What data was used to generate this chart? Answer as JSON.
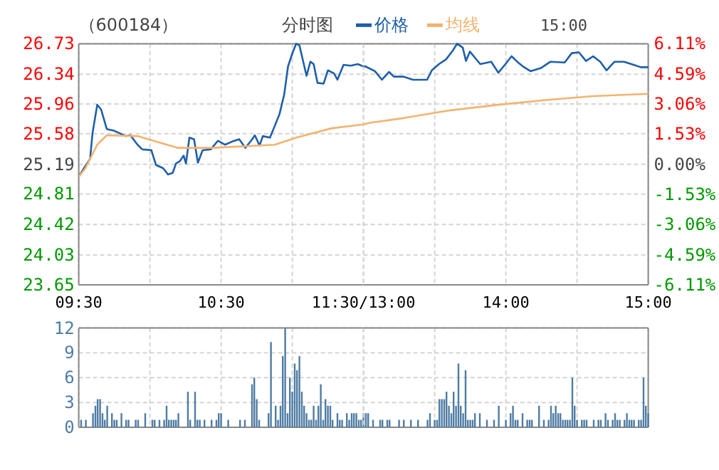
{
  "chart_data": [
    {
      "type": "line",
      "title": "（600184）",
      "subtitle": "分时图",
      "legend": "top",
      "grid": true,
      "xlim": [
        9.5,
        11.5
      ],
      "xticks": [
        {
          "value": 9.5,
          "label": "09:30"
        },
        {
          "value": 10,
          "label": null
        },
        {
          "value": 10.5,
          "label": "10:30"
        },
        {
          "value": 11,
          "label": null
        },
        {
          "value": 11.5,
          "label": "11:30/13:00"
        }
      ],
      "ylim": [
        23.65,
        26.73
      ],
      "yticks": [
        23.65,
        24.03,
        24.42,
        24.81,
        25.19,
        25.58,
        25.96,
        26.34,
        26.73
      ],
      "series": [
        {
          "name": "价格",
          "color": "#1f5fa8",
          "x": [
            9.5,
            9.547,
            9.58,
            9.597,
            9.63,
            9.657,
            9.697,
            9.747,
            9.83,
            9.863,
            9.913,
            9.947,
            10.01,
            10.043,
            10.093,
            10.127,
            10.16,
            10.183,
            10.21,
            10.237,
            10.253,
            10.277,
            10.31,
            10.337,
            10.37,
            10.427,
            10.477,
            10.527,
            10.577,
            10.627,
            10.67,
            10.71,
            10.737,
            10.77,
            10.793,
            10.843,
            10.87,
            10.91,
            10.943,
            10.97,
            11.003,
            11.027,
            11.05,
            11.077,
            11.1,
            11.127,
            11.15,
            11.177,
            11.22,
            11.25,
            11.293,
            11.317,
            11.36,
            11.41,
            11.46,
            11.5
          ],
          "values": [
            25.03,
            25.17,
            25.26,
            25.59,
            25.95,
            25.89,
            25.64,
            25.62,
            25.55,
            25.56,
            25.44,
            25.38,
            25.37,
            25.18,
            25.14,
            25.06,
            25.08,
            25.2,
            25.23,
            25.3,
            25.2,
            25.53,
            25.51,
            25.21,
            25.37,
            25.38,
            25.49,
            25.44,
            25.48,
            25.51,
            25.4,
            25.49,
            25.56,
            25.43,
            25.55,
            25.53,
            25.65,
            25.83,
            26.08,
            26.44,
            26.62,
            26.73,
            26.71,
            26.5,
            26.32,
            26.5,
            26.47,
            26.23,
            26.22,
            26.39,
            26.35,
            26.27,
            26.46,
            26.45,
            26.47,
            26.44
          ]
        },
        {
          "name": "均线",
          "color": "#f3b36f",
          "x": [
            9.5,
            9.547,
            9.63,
            9.697,
            9.913,
            10.043,
            10.193,
            10.443,
            10.877,
            11.027,
            11.277,
            11.5
          ],
          "values": [
            25.03,
            25.14,
            25.44,
            25.56,
            25.55,
            25.48,
            25.4,
            25.4,
            25.44,
            25.53,
            25.65,
            25.7
          ]
        }
      ]
    },
    {
      "type": "line",
      "annotations": [
        "15:00"
      ],
      "grid": true,
      "tick_labels": "x",
      "xlim": [
        13,
        15
      ],
      "xticks": [
        {
          "value": 13,
          "label": null
        },
        {
          "value": 13.5,
          "label": null
        },
        {
          "value": 14,
          "label": "14:00"
        },
        {
          "value": 14.5,
          "label": null
        },
        {
          "value": 15,
          "label": "15:00"
        }
      ],
      "ylim": [
        23.65,
        26.73
      ],
      "yticks": [
        23.65,
        24.03,
        24.42,
        24.81,
        25.19,
        25.58,
        25.96,
        26.34,
        26.73
      ],
      "y2lim": [
        -6.11,
        6.11
      ],
      "y2ticks": [
        {
          "value": -6.11,
          "label": "-6.11%"
        },
        {
          "value": -4.59,
          "label": "-4.59%"
        },
        {
          "value": -3.06,
          "label": "-3.06%"
        },
        {
          "value": -1.53,
          "label": "-1.53%"
        },
        {
          "value": 0,
          "label": "0.00%"
        },
        {
          "value": 1.53,
          "label": "1.53%"
        },
        {
          "value": 3.06,
          "label": "3.06%"
        },
        {
          "value": 4.59,
          "label": "4.59%"
        },
        {
          "value": 6.11,
          "label": "6.11%"
        }
      ],
      "series": [
        {
          "color": "#1f5fa8",
          "x": [
            13,
            13.013,
            13.08,
            13.13,
            13.18,
            13.213,
            13.28,
            13.347,
            13.447,
            13.48,
            13.53,
            13.58,
            13.63,
            13.657,
            13.697,
            13.72,
            13.747,
            13.82,
            13.897,
            13.947,
            13.997,
            14.04,
            14.08,
            14.12,
            14.173,
            14.247,
            14.313,
            14.413,
            14.463,
            14.513,
            14.563,
            14.613,
            14.663,
            14.707,
            14.763,
            14.83,
            14.897,
            14.947,
            15
          ],
          "values": [
            26.44,
            26.44,
            26.38,
            26.27,
            26.37,
            26.31,
            26.31,
            26.27,
            26.27,
            26.39,
            26.47,
            26.53,
            26.65,
            26.73,
            26.68,
            26.51,
            26.63,
            26.47,
            26.5,
            26.36,
            26.47,
            26.57,
            26.5,
            26.44,
            26.38,
            26.42,
            26.5,
            26.49,
            26.61,
            26.62,
            26.51,
            26.57,
            26.5,
            26.39,
            26.5,
            26.5,
            26.46,
            26.43,
            26.43
          ]
        },
        {
          "color": "#f3b36f",
          "x": [
            13,
            13.043,
            13.28,
            13.613,
            13.947,
            14.28,
            14.613,
            15
          ],
          "values": [
            25.7,
            25.72,
            25.78,
            25.88,
            25.95,
            26.01,
            26.06,
            26.09
          ]
        }
      ]
    },
    {
      "type": "bar",
      "color": "#4f7ca3",
      "grid": true,
      "tick_labels": "y",
      "xlim": [
        9.5,
        11.5
      ],
      "xticks": [
        9.5,
        10,
        10.5,
        11,
        11.5
      ],
      "ylim": [
        0,
        12
      ],
      "yticks": [
        0,
        3,
        6,
        9,
        12
      ],
      "x": [
        9.517,
        9.55,
        9.6,
        9.617,
        9.633,
        9.65,
        9.667,
        9.683,
        9.7,
        9.733,
        9.75,
        9.767,
        9.8,
        9.833,
        9.85,
        9.9,
        9.917,
        9.967,
        10.017,
        10.033,
        10.067,
        10.1,
        10.117,
        10.133,
        10.15,
        10.167,
        10.183,
        10.2,
        10.267,
        10.283,
        10.317,
        10.333,
        10.35,
        10.383,
        10.433,
        10.467,
        10.483,
        10.5,
        10.55,
        10.633,
        10.667,
        10.717,
        10.733,
        10.75,
        10.767,
        10.833,
        10.85,
        10.883,
        10.9,
        10.917,
        10.933,
        10.95,
        10.967,
        10.983,
        11,
        11.017,
        11.033,
        11.05,
        11.067,
        11.083,
        11.1,
        11.117,
        11.133,
        11.15,
        11.167,
        11.183,
        11.2,
        11.217,
        11.233,
        11.25,
        11.267,
        11.283,
        11.317,
        11.333,
        11.35,
        11.383,
        11.4,
        11.417,
        11.433,
        11.45,
        11.467,
        11.483,
        11.5
      ],
      "values": [
        0.9,
        0.9,
        1.7,
        2.6,
        3.4,
        3.4,
        1.7,
        0.9,
        2.6,
        1.7,
        0.9,
        0.9,
        1.7,
        0.9,
        0.9,
        0.9,
        0.9,
        1.7,
        0.9,
        0.9,
        0.9,
        0.9,
        2.6,
        0.9,
        0.9,
        0.9,
        0.9,
        1.7,
        4.3,
        0.9,
        4.3,
        0.9,
        0.9,
        0.9,
        0.9,
        0.9,
        1.7,
        1.7,
        0.9,
        0.9,
        0.9,
        5.2,
        6,
        3.4,
        0.9,
        1.7,
        10.3,
        2.6,
        0.9,
        2.6,
        8.6,
        12,
        1.7,
        6,
        4.3,
        7.7,
        6.9,
        8.6,
        4.3,
        2.6,
        1.7,
        0.9,
        0.9,
        2.6,
        0.9,
        2.6,
        5.2,
        0.9,
        3.4,
        2.6,
        2.6,
        0.9,
        1.7,
        0.9,
        0.9,
        1.7,
        0.9,
        1.7,
        1.7,
        1.7,
        0.9,
        0.9,
        1.7
      ]
    },
    {
      "type": "bar",
      "color": "#4f7ca3",
      "grid": true,
      "tick_labels": false,
      "xlim": [
        13,
        15
      ],
      "xticks": [
        13,
        13.5,
        14,
        14.5,
        15
      ],
      "ylim": [
        0,
        12
      ],
      "yticks": [
        0,
        3,
        6,
        9,
        12
      ],
      "x": [
        13.017,
        13.033,
        13.067,
        13.117,
        13.133,
        13.167,
        13.183,
        13.25,
        13.283,
        13.333,
        13.383,
        13.45,
        13.467,
        13.5,
        13.517,
        13.533,
        13.55,
        13.567,
        13.583,
        13.6,
        13.617,
        13.633,
        13.65,
        13.667,
        13.683,
        13.7,
        13.717,
        13.733,
        13.75,
        13.767,
        13.783,
        13.817,
        13.867,
        13.917,
        13.95,
        14,
        14.033,
        14.05,
        14.067,
        14.083,
        14.117,
        14.15,
        14.167,
        14.183,
        14.233,
        14.267,
        14.3,
        14.317,
        14.333,
        14.35,
        14.367,
        14.383,
        14.4,
        14.417,
        14.433,
        14.45,
        14.467,
        14.483,
        14.5,
        14.533,
        14.55,
        14.567,
        14.617,
        14.65,
        14.667,
        14.7,
        14.717,
        14.75,
        14.767,
        14.783,
        14.8,
        14.833,
        14.85,
        14.867,
        14.883,
        14.9,
        14.933,
        14.95,
        14.967,
        14.983,
        15
      ],
      "values": [
        1.7,
        1.7,
        0.9,
        0.9,
        0.9,
        0.9,
        0.9,
        0.9,
        0.9,
        0.9,
        0.9,
        0.9,
        1.7,
        0.9,
        0.9,
        3.4,
        3.4,
        3.4,
        4.3,
        2.6,
        1.7,
        4.3,
        2.6,
        7.7,
        2.6,
        1.7,
        6.9,
        0.9,
        0.9,
        0.9,
        1.7,
        1.7,
        0.9,
        0.9,
        2.6,
        0.9,
        1.7,
        2.6,
        0.9,
        0.9,
        1.7,
        0.9,
        0.9,
        0.9,
        2.6,
        0.9,
        0.9,
        2.6,
        1.7,
        2.6,
        1.7,
        1.7,
        0.9,
        0.9,
        0.9,
        0.9,
        6,
        2.6,
        0.9,
        0.9,
        0.9,
        0.9,
        0.9,
        0.9,
        0.9,
        1.7,
        0.9,
        0.9,
        1.7,
        0.9,
        0.9,
        0.9,
        1.7,
        0.9,
        0.9,
        0.9,
        0.9,
        0.9,
        6,
        2.6,
        1.7
      ]
    }
  ]
}
